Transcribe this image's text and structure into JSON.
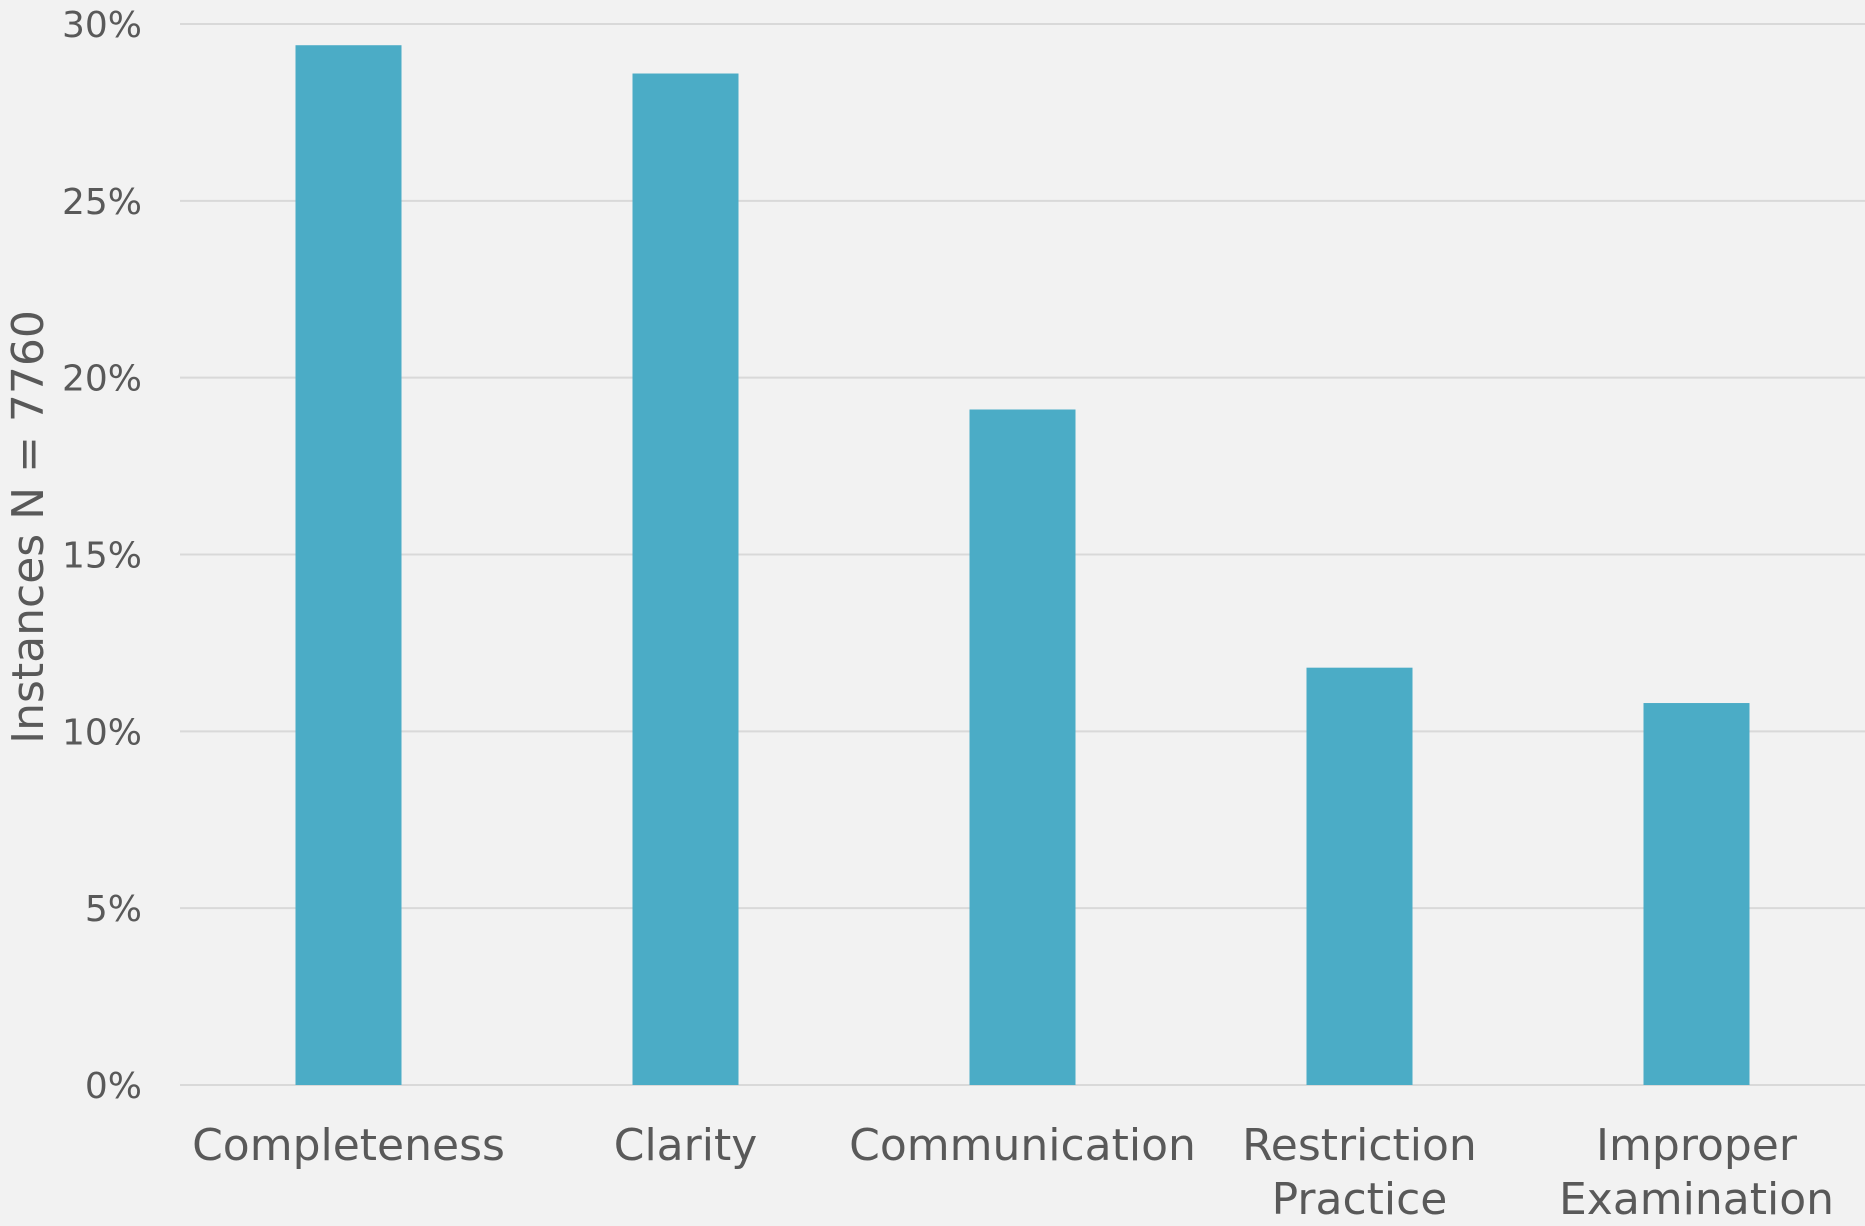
{
  "chart_data": {
    "type": "bar",
    "title": "",
    "xlabel": "",
    "ylabel": "Instances N = 7760",
    "categories": [
      [
        "Completeness"
      ],
      [
        "Clarity"
      ],
      [
        "Communication"
      ],
      [
        "Restriction",
        "Practice"
      ],
      [
        "Improper",
        "Examination"
      ]
    ],
    "values": [
      29.4,
      28.6,
      19.1,
      11.8,
      10.8
    ],
    "ylim": [
      0,
      30
    ],
    "yticks": [
      0,
      5,
      10,
      15,
      20,
      25,
      30
    ],
    "ytick_labels": [
      "0%",
      "5%",
      "10%",
      "15%",
      "20%",
      "25%",
      "30%"
    ],
    "grid": true,
    "legend": "none",
    "colors": {
      "bar": "#4bacc6",
      "grid": "#d9d9d9",
      "text": "#595959",
      "background": "#f2f2f2"
    }
  }
}
